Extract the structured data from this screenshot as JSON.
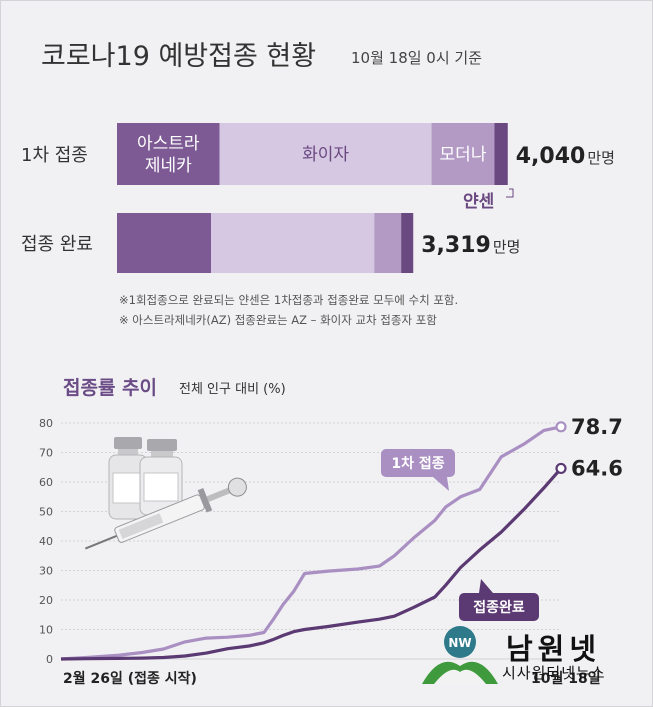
{
  "header": {
    "title": "코로나19 예방접종 현황",
    "as_of": "10월 18일 0시 기준"
  },
  "bar_panel": {
    "rows": [
      {
        "label": "1차 접종",
        "total": "4,040",
        "unit": "만명",
        "segments": [
          {
            "name": "아스트라 제네카",
            "lines": [
              "아스트라",
              "제네카"
            ],
            "share": 0.2565,
            "color": "#7d5a94"
          },
          {
            "name": "화이자",
            "lines": [
              "화이자"
            ],
            "share": 0.5299,
            "color": "#d6c7e3"
          },
          {
            "name": "모더나",
            "lines": [
              "모더나"
            ],
            "share": 0.1573,
            "color": "#b29ac5"
          },
          {
            "name": "얀센",
            "lines": [],
            "share": 0.0332,
            "color": "#6a4880"
          }
        ]
      },
      {
        "label": "접종 완료",
        "total": "3,319",
        "unit": "만명",
        "segments": [
          {
            "name": "아스트라 제네카",
            "lines": [],
            "share": 0.2353,
            "color": "#7d5a94"
          },
          {
            "name": "화이자",
            "lines": [],
            "share": 0.4079,
            "color": "#d6c7e3"
          },
          {
            "name": "모더나",
            "lines": [],
            "share": 0.0672,
            "color": "#b29ac5"
          },
          {
            "name": "얀센",
            "lines": [],
            "share": 0.0302,
            "color": "#6a4880"
          }
        ]
      }
    ],
    "janssen_callout": "얀센",
    "notes": [
      "※1회접종으로 완료되는 얀센은 1차접종과 접종완료 모두에 수치 포함.",
      "※ 아스트라제네카(AZ) 접종완료는 AZ – 화이자 교차 접종자 포함"
    ]
  },
  "line_title": "접종률 추이",
  "line_subtitle": "전체 인구 대비 (%)",
  "chart_data": [
    {
      "type": "bar",
      "orientation": "horizontal",
      "stacked": true,
      "categories": [
        "1차 접종",
        "접종 완료"
      ],
      "series": [
        {
          "name": "아스트라 제네카",
          "values": [
            1036,
            781
          ]
        },
        {
          "name": "화이자",
          "values": [
            2141,
            1354
          ]
        },
        {
          "name": "모더나",
          "values": [
            635,
            223
          ]
        },
        {
          "name": "얀센",
          "values": [
            134,
            100
          ]
        }
      ],
      "totals_labels": [
        "4,040만명",
        "3,319만명"
      ],
      "title": "코로나19 예방접종 현황"
    },
    {
      "type": "line",
      "title": "접종률 추이",
      "ylabel": "전체 인구 대비 (%)",
      "ylim": [
        0,
        80
      ],
      "yticks": [
        0,
        10,
        20,
        30,
        40,
        50,
        60,
        70,
        80
      ],
      "x_start_label": "2월 26일 (접종 시작)",
      "x_end_label": "10월 18일",
      "x": [
        "02-26",
        "03-10",
        "03-25",
        "04-05",
        "04-15",
        "04-25",
        "05-05",
        "05-15",
        "05-25",
        "06-01",
        "06-05",
        "06-10",
        "06-15",
        "06-20",
        "07-01",
        "07-15",
        "07-25",
        "08-01",
        "08-10",
        "08-20",
        "08-25",
        "09-01",
        "09-10",
        "09-20",
        "10-01",
        "10-10",
        "10-18"
      ],
      "series": [
        {
          "name": "1차 접종",
          "end_label": "78.7",
          "values": [
            0,
            0.5,
            1.3,
            2.2,
            3.4,
            5.8,
            7.1,
            7.4,
            8.0,
            9.0,
            13.0,
            18.5,
            23.0,
            29.0,
            29.8,
            30.5,
            31.5,
            35.0,
            41.0,
            47.0,
            51.5,
            55.0,
            57.5,
            68.5,
            73.0,
            77.5,
            78.7
          ]
        },
        {
          "name": "접종완료",
          "end_label": "64.6",
          "values": [
            0,
            0.1,
            0.2,
            0.3,
            0.5,
            1.0,
            2.0,
            3.5,
            4.4,
            5.5,
            6.5,
            8.0,
            9.3,
            10.0,
            11.0,
            12.5,
            13.5,
            14.5,
            17.5,
            21.0,
            25.0,
            31.0,
            37.0,
            43.0,
            51.0,
            58.0,
            64.6
          ]
        }
      ]
    }
  ],
  "brand": {
    "name": "남원넷",
    "tagline": "시사원터넷뉴스",
    "logo_text": "NW"
  },
  "colors": {
    "first_dose": "#a98fc2",
    "full_dose": "#5b3a73",
    "title_purple": "#6b4c86",
    "background": "#f1f1f3"
  }
}
